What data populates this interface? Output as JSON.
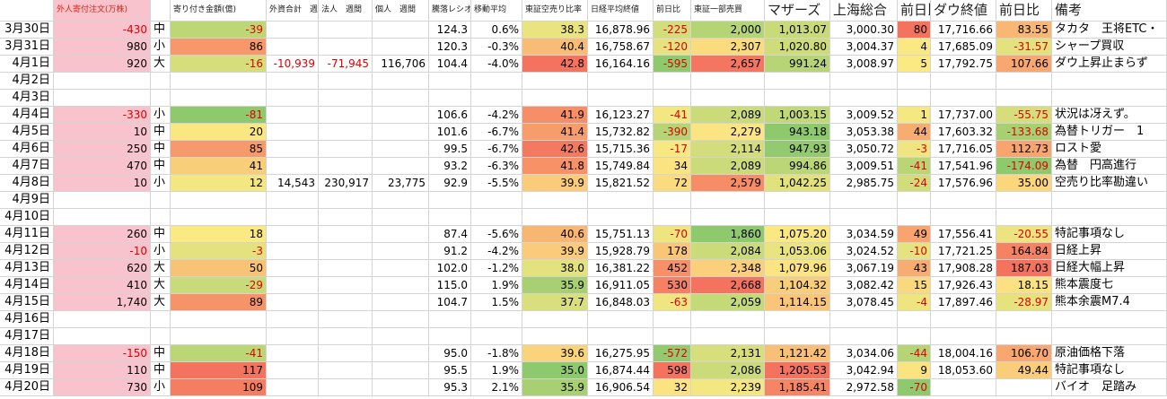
{
  "table": {
    "header": [
      null,
      "外人寄付注文(万株)",
      null,
      "寄り付き金額(億)",
      "外資合計　週間",
      "法人　週間",
      "個人　週間",
      "騰落レシオ",
      "移動平均",
      "東証空売り比率",
      "日経平均終値",
      "前日比",
      "東証一部売買",
      "マザーズ",
      "上海総合",
      "前日比",
      "ダウ終値",
      "前日比",
      "備考"
    ],
    "rows": [
      [
        "3月30日",
        "-430",
        "中",
        "-39",
        null,
        null,
        null,
        "124.3",
        "0.6%",
        "38.3",
        "16,878.96",
        "-225",
        "2,000",
        "1,013.07",
        "3,000.30",
        "80",
        "17,716.66",
        "83.55",
        "タカタ　王将ETC・"
      ],
      [
        "3月31日",
        "980",
        "小",
        "86",
        null,
        null,
        null,
        "120.3",
        "-0.3%",
        "40.4",
        "16,758.67",
        "-120",
        "2,307",
        "1,020.80",
        "3,004.37",
        "4",
        "17,685.09",
        "-31.57",
        "シャープ買収"
      ],
      [
        "4月1日",
        "920",
        "大",
        "-16",
        "-10,939",
        "-71,945",
        "116,706",
        "104.4",
        "-4.0%",
        "42.8",
        "16,164.16",
        "-595",
        "2,657",
        "991.24",
        "3,008.97",
        "5",
        "17,792.75",
        "107.66",
        "ダウ上昇止まらず"
      ],
      [
        "4月2日",
        null,
        null,
        null,
        null,
        null,
        null,
        null,
        null,
        null,
        null,
        null,
        null,
        null,
        null,
        null,
        null,
        null,
        null
      ],
      [
        "4月3日",
        null,
        null,
        null,
        null,
        null,
        null,
        null,
        null,
        null,
        null,
        null,
        null,
        null,
        null,
        null,
        null,
        null,
        null
      ],
      [
        "4月4日",
        "-330",
        "小",
        "-81",
        null,
        null,
        null,
        "106.6",
        "-4.2%",
        "41.9",
        "16,123.27",
        "-41",
        "2,089",
        "1,003.15",
        "3,009.52",
        "1",
        "17,737.00",
        "-55.75",
        "状況は冴えず。"
      ],
      [
        "4月5日",
        "10",
        "中",
        "20",
        null,
        null,
        null,
        "101.6",
        "-6.7%",
        "41.4",
        "15,732.82",
        "-390",
        "2,279",
        "943.18",
        "3,053.38",
        "44",
        "17,603.32",
        "-133.68",
        "為替トリガー　1"
      ],
      [
        "4月6日",
        "250",
        "中",
        "85",
        null,
        null,
        null,
        "99.5",
        "-6.7%",
        "42.6",
        "15,715.36",
        "-17",
        "2,114",
        "947.93",
        "3,050.72",
        "-3",
        "17,716.05",
        "112.73",
        "ロスト愛"
      ],
      [
        "4月7日",
        "470",
        "中",
        "41",
        null,
        null,
        null,
        "93.2",
        "-6.3%",
        "41.8",
        "15,749.84",
        "34",
        "2,089",
        "994.86",
        "3,009.51",
        "-41",
        "17,541.96",
        "-174.09",
        "為替　円高進行"
      ],
      [
        "4月8日",
        "10",
        "小",
        "12",
        "14,543",
        "230,917",
        "23,775",
        "92.9",
        "-5.5%",
        "39.9",
        "15,821.52",
        "72",
        "2,579",
        "1,042.25",
        "2,985.75",
        "-24",
        "17,576.96",
        "35.00",
        "空売り比率勘違い"
      ],
      [
        "4月9日",
        null,
        null,
        null,
        null,
        null,
        null,
        null,
        null,
        null,
        null,
        null,
        null,
        null,
        null,
        null,
        null,
        null,
        null
      ],
      [
        "4月10日",
        null,
        null,
        null,
        null,
        null,
        null,
        null,
        null,
        null,
        null,
        null,
        null,
        null,
        null,
        null,
        null,
        null,
        null
      ],
      [
        "4月11日",
        "260",
        "中",
        "18",
        null,
        null,
        null,
        "87.4",
        "-5.6%",
        "40.6",
        "15,751.13",
        "-70",
        "1,860",
        "1,075.20",
        "3,034.59",
        "49",
        "17,556.41",
        "-20.55",
        "特記事項なし"
      ],
      [
        "4月12日",
        "-10",
        "小",
        "-3",
        null,
        null,
        null,
        "91.2",
        "-4.2%",
        "39.9",
        "15,928.79",
        "178",
        "2,084",
        "1,053.06",
        "3,024.52",
        "-10",
        "17,721.25",
        "164.84",
        "日経上昇"
      ],
      [
        "4月13日",
        "620",
        "大",
        "50",
        null,
        null,
        null,
        "102.0",
        "-1.2%",
        "38.0",
        "16,381.22",
        "452",
        "2,348",
        "1,079.96",
        "3,067.19",
        "43",
        "17,908.28",
        "187.03",
        "日経大幅上昇"
      ],
      [
        "4月14日",
        "410",
        "大",
        "-29",
        null,
        null,
        null,
        "115.0",
        "1.9%",
        "35.9",
        "16,911.05",
        "530",
        "2,668",
        "1,104.32",
        "3,082.42",
        "15",
        "17,926.43",
        "18.15",
        "熊本震度七"
      ],
      [
        "4月15日",
        "1,740",
        "大",
        "89",
        null,
        null,
        null,
        "104.7",
        "1.5%",
        "37.7",
        "16,848.03",
        "-63",
        "2,059",
        "1,114.15",
        "3,078.45",
        "-4",
        "17,897.46",
        "-28.97",
        "熊本余震M7.4"
      ],
      [
        "4月16日",
        null,
        null,
        null,
        null,
        null,
        null,
        null,
        null,
        null,
        null,
        null,
        null,
        null,
        null,
        null,
        null,
        null,
        null
      ],
      [
        "4月17日",
        null,
        null,
        null,
        null,
        null,
        null,
        null,
        null,
        null,
        null,
        null,
        null,
        null,
        null,
        null,
        null,
        null,
        null
      ],
      [
        "4月18日",
        "-150",
        "中",
        "-41",
        null,
        null,
        null,
        "95.0",
        "-1.8%",
        "39.6",
        "16,275.95",
        "-572",
        "2,131",
        "1,121.42",
        "3,034.06",
        "-44",
        "18,004.16",
        "106.70",
        "原油価格下落"
      ],
      [
        "4月19日",
        "110",
        "中",
        "117",
        null,
        null,
        null,
        "95.5",
        "1.9%",
        "35.0",
        "16,874.44",
        "598",
        "2,086",
        "1,205.53",
        "3,042.94",
        "9",
        "18,053.60",
        "49.44",
        "特記事項なし"
      ],
      [
        "4月20日",
        "730",
        "小",
        "109",
        null,
        null,
        null,
        "95.3",
        "2.1%",
        "35.9",
        "16,906.54",
        "32",
        "2,239",
        "1,185.41",
        "2,972.58",
        "-70",
        null,
        null,
        "バイオ　足踏み"
      ]
    ]
  }
}
